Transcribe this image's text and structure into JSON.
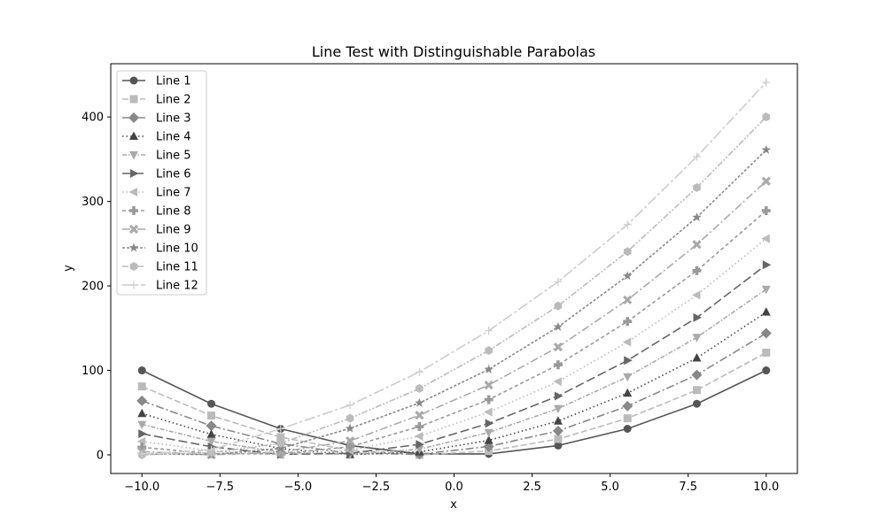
{
  "chart_data": {
    "type": "line",
    "title": "Line Test with Distinguishable Parabolas",
    "xlabel": "x",
    "ylabel": "y",
    "xlim": [
      -11.0,
      11.0
    ],
    "ylim": [
      -22,
      463
    ],
    "xticks": [
      -10.0,
      -7.5,
      -5.0,
      -2.5,
      0.0,
      2.5,
      5.0,
      7.5,
      10.0
    ],
    "xtick_labels": [
      "−10.0",
      "−7.5",
      "−5.0",
      "−2.5",
      "0.0",
      "2.5",
      "5.0",
      "7.5",
      "10.0"
    ],
    "yticks": [
      0,
      100,
      200,
      300,
      400
    ],
    "ytick_labels": [
      "0",
      "100",
      "200",
      "300",
      "400"
    ],
    "grid": false,
    "legend_position": "top-left",
    "x": [
      -10.0,
      -7.778,
      -5.556,
      -3.333,
      -1.111,
      1.111,
      3.333,
      5.556,
      7.778,
      10.0
    ],
    "series": [
      {
        "name": "Line 1",
        "color": "#555555",
        "marker": "circle",
        "dash": "solid",
        "values": [
          100.0,
          60.5,
          30.9,
          11.1,
          1.2,
          1.2,
          11.1,
          30.9,
          60.5,
          100.0
        ]
      },
      {
        "name": "Line 2",
        "color": "#bbbbbb",
        "marker": "square",
        "dash": "dashed",
        "values": [
          81.0,
          46.5,
          21.0,
          5.4,
          0.0,
          4.5,
          18.8,
          43.3,
          76.7,
          121.0
        ]
      },
      {
        "name": "Line 3",
        "color": "#888888",
        "marker": "diamond",
        "dash": "dashdot",
        "values": [
          64.0,
          34.4,
          13.2,
          1.8,
          0.8,
          9.9,
          28.4,
          57.7,
          94.7,
          144.0
        ]
      },
      {
        "name": "Line 4",
        "color": "#444444",
        "marker": "triangle-up",
        "dash": "dotted",
        "values": [
          49.0,
          24.3,
          7.5,
          0.3,
          3.5,
          17.2,
          40.0,
          73.1,
          114.7,
          169.0
        ]
      },
      {
        "name": "Line 5",
        "color": "#aaaaaa",
        "marker": "triangle-down",
        "dash": "densedashdot",
        "values": [
          36.0,
          16.0,
          3.2,
          0.5,
          6.7,
          26.5,
          54.8,
          92.4,
          139.0,
          196.0
        ]
      },
      {
        "name": "Line 6",
        "color": "#666666",
        "marker": "triangle-right",
        "dash": "longdash",
        "values": [
          25.0,
          9.6,
          0.5,
          1.9,
          12.5,
          37.3,
          69.7,
          111.8,
          162.5,
          225.0
        ]
      },
      {
        "name": "Line 7",
        "color": "#bbbbbb",
        "marker": "triangle-left",
        "dash": "dotted",
        "values": [
          16.0,
          4.7,
          0.0,
          5.3,
          22.1,
          50.7,
          86.8,
          133.6,
          189.2,
          256.0
        ]
      },
      {
        "name": "Line 8",
        "color": "#999999",
        "marker": "plus",
        "dash": "shortdash",
        "values": [
          9.0,
          1.5,
          1.1,
          9.6,
          33.5,
          65.4,
          106.6,
          157.9,
          218.1,
          289.0
        ]
      },
      {
        "name": "Line 9",
        "color": "#aaaaaa",
        "marker": "x",
        "dash": "dashdot",
        "values": [
          4.0,
          0.0,
          3.3,
          16.6,
          47.0,
          82.6,
          127.7,
          183.4,
          249.0,
          324.0
        ]
      },
      {
        "name": "Line 10",
        "color": "#888888",
        "marker": "star",
        "dash": "densedash",
        "values": [
          1.0,
          0.4,
          7.7,
          31.3,
          61.5,
          101.2,
          151.5,
          211.8,
          281.2,
          361.0
        ]
      },
      {
        "name": "Line 11",
        "color": "#bbbbbb",
        "marker": "hexagon",
        "dash": "dashdotdot",
        "values": [
          0.0,
          2.6,
          13.7,
          43.4,
          78.5,
          123.5,
          176.3,
          240.7,
          316.3,
          400.0
        ]
      },
      {
        "name": "Line 12",
        "color": "#cccccc",
        "marker": "plus-thin",
        "dash": "longdashdot",
        "values": [
          1.0,
          6.1,
          30.9,
          59.0,
          98.1,
          147.0,
          205.0,
          272.6,
          353.0,
          441.0
        ]
      }
    ]
  }
}
